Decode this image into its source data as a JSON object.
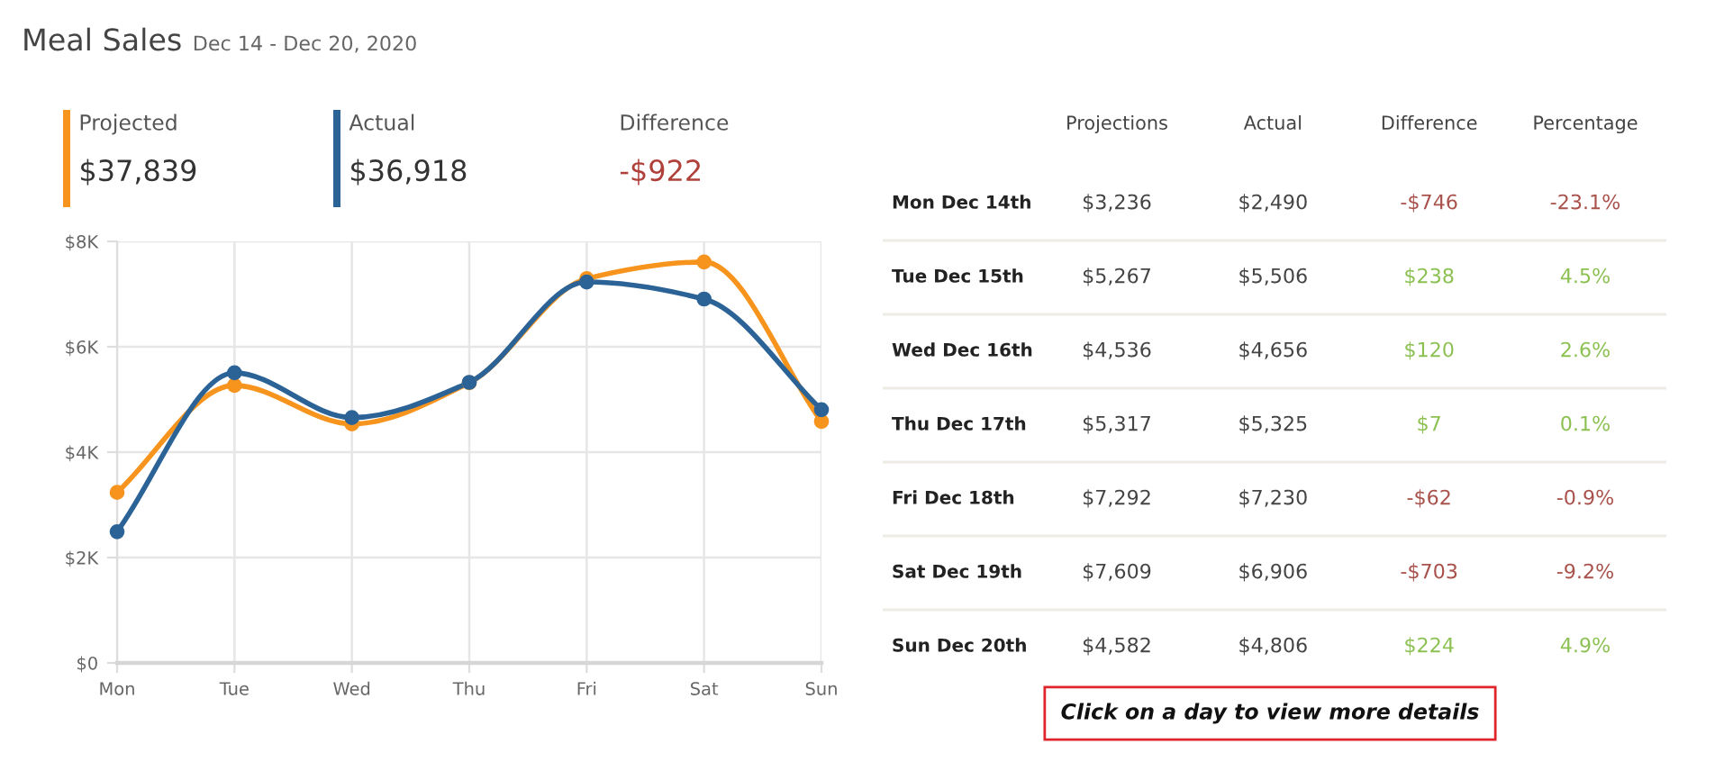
{
  "chart_data": [
    {
      "type": "other",
      "title": "Meal Sales",
      "subtitle": "Dec 14 - Dec 20, 2020",
      "series": [
        {
          "name": "Projected",
          "color": "#f7941d",
          "values": [
            37839
          ],
          "value_labels": [
            "$37,839"
          ]
        },
        {
          "name": "Actual",
          "color": "#2c6397",
          "values": [
            36918
          ],
          "value_labels": [
            "$36,918"
          ]
        },
        {
          "name": "Difference",
          "colors": [
            "#b0403a"
          ],
          "values": [
            -922
          ],
          "value_labels": [
            "-$922"
          ]
        }
      ]
    },
    {
      "type": "line",
      "categories": [
        "Mon",
        "Tue",
        "Wed",
        "Thu",
        "Fri",
        "Sat",
        "Sun"
      ],
      "series": [
        {
          "color": "#f7941d",
          "values": [
            3236,
            5267,
            4536,
            5317,
            7292,
            7609,
            4582
          ]
        },
        {
          "color": "#2c6397",
          "values": [
            2490,
            5506,
            4656,
            5325,
            7230,
            6906,
            4806
          ]
        }
      ],
      "ylim": [
        0,
        8000
      ],
      "yticks": [
        {
          "value": 0,
          "label": "$0"
        },
        {
          "value": 2000,
          "label": "$2K"
        },
        {
          "value": 4000,
          "label": "$4K"
        },
        {
          "value": 6000,
          "label": "$6K"
        },
        {
          "value": 8000,
          "label": "$8K"
        }
      ],
      "grid": true,
      "marker": "circle"
    },
    {
      "type": "other",
      "categories": [
        "Mon Dec 14th",
        "Tue Dec 15th",
        "Wed Dec 16th",
        "Thu Dec 17th",
        "Fri Dec 18th",
        "Sat Dec 19th",
        "Sun Dec 20th"
      ],
      "series": [
        {
          "name": "Projections",
          "values": [
            3236,
            5267,
            4536,
            5317,
            7292,
            7609,
            4582
          ],
          "value_labels": [
            "$3,236",
            "$5,267",
            "$4,536",
            "$5,317",
            "$7,292",
            "$7,609",
            "$4,582"
          ]
        },
        {
          "name": "Actual",
          "values": [
            2490,
            5506,
            4656,
            5325,
            7230,
            6906,
            4806
          ],
          "value_labels": [
            "$2,490",
            "$5,506",
            "$4,656",
            "$5,325",
            "$7,230",
            "$6,906",
            "$4,806"
          ]
        },
        {
          "name": "Difference",
          "values": [
            -746,
            238,
            120,
            7,
            -62,
            -703,
            224
          ],
          "value_labels": [
            "-$746",
            "$238",
            "$120",
            "$7",
            "-$62",
            "-$703",
            "$224"
          ],
          "colors": [
            "#a9524c",
            "#8cc152",
            "#8cc152",
            "#8cc152",
            "#a9524c",
            "#a9524c",
            "#8cc152"
          ]
        },
        {
          "name": "Percentage",
          "values": [
            -23.1,
            4.5,
            2.6,
            0.1,
            -0.9,
            -9.2,
            4.9
          ],
          "value_labels": [
            "-23.1%",
            "4.5%",
            "2.6%",
            "0.1%",
            "-0.9%",
            "-9.2%",
            "4.9%"
          ],
          "colors": [
            "#a9524c",
            "#8cc152",
            "#8cc152",
            "#8cc152",
            "#a9524c",
            "#a9524c",
            "#8cc152"
          ]
        }
      ],
      "annotations": [
        "Click on a day to view more details"
      ]
    }
  ]
}
